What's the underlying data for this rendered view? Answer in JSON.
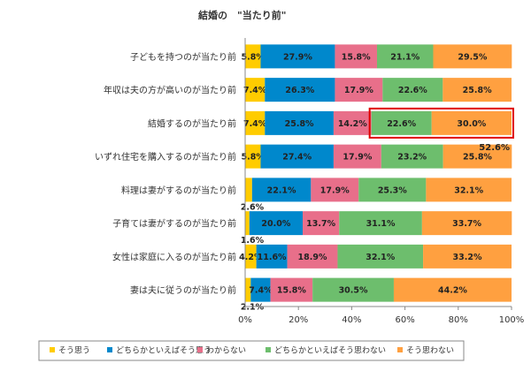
{
  "chart_data": {
    "type": "bar",
    "orientation": "horizontal",
    "stacked": true,
    "title": "結婚の　\"当たり前\"",
    "categories": [
      "子どもを持つのが当たり前",
      "年収は夫の方が高いのが当たり前",
      "結婚するのが当たり前",
      "いずれ住宅を購入するのが当たり前",
      "料理は妻がするのが当たり前",
      "子育ては妻がするのが当たり前",
      "女性は家庭に入るのが当たり前",
      "妻は夫に従うのが当たり前"
    ],
    "series": [
      {
        "name": "そう思う",
        "color": "#FFCC00",
        "values": [
          5.8,
          7.4,
          7.4,
          5.8,
          2.6,
          1.6,
          4.2,
          2.1
        ],
        "labels": [
          "5.8%",
          "7.4%",
          "7.4%",
          "5.8%",
          "2.6%",
          "1.6%",
          "4.2%",
          "2.1%"
        ]
      },
      {
        "name": "どちらかといえばそう思う",
        "color": "#0088CC",
        "values": [
          27.9,
          26.3,
          25.8,
          27.4,
          22.1,
          20.0,
          11.6,
          7.4
        ],
        "labels": [
          "27.9%",
          "26.3%",
          "25.8%",
          "27.4%",
          "22.1%",
          "20.0%",
          "11.6%",
          "7.4%"
        ]
      },
      {
        "name": "わからない",
        "color": "#E86F8A",
        "values": [
          15.8,
          17.9,
          14.2,
          17.9,
          17.9,
          13.7,
          18.9,
          15.8
        ],
        "labels": [
          "15.8%",
          "17.9%",
          "14.2%",
          "17.9%",
          "17.9%",
          "13.7%",
          "18.9%",
          "15.8%"
        ]
      },
      {
        "name": "どちらかといえばそう思わない",
        "color": "#6DBE6D",
        "values": [
          21.1,
          22.6,
          22.6,
          23.2,
          25.3,
          31.1,
          32.1,
          30.5
        ],
        "labels": [
          "21.1%",
          "22.6%",
          "22.6%",
          "23.2%",
          "25.3%",
          "31.1%",
          "32.1%",
          "30.5%"
        ]
      },
      {
        "name": "そう思わない",
        "color": "#FFA040",
        "values": [
          29.5,
          25.8,
          30.0,
          25.8,
          32.1,
          33.7,
          33.2,
          44.2
        ],
        "labels": [
          "29.5%",
          "25.8%",
          "30.0%",
          "25.8%",
          "32.1%",
          "33.7%",
          "33.2%",
          "44.2%"
        ]
      }
    ],
    "xlim": [
      0,
      100
    ],
    "xticks": [
      "0%",
      "20%",
      "40%",
      "60%",
      "80%",
      "100%"
    ],
    "legend_position": "bottom",
    "annotation": {
      "text": "52.6%",
      "category_index": 2,
      "series_from": 3,
      "series_to": 4,
      "color": "#E00000"
    }
  }
}
